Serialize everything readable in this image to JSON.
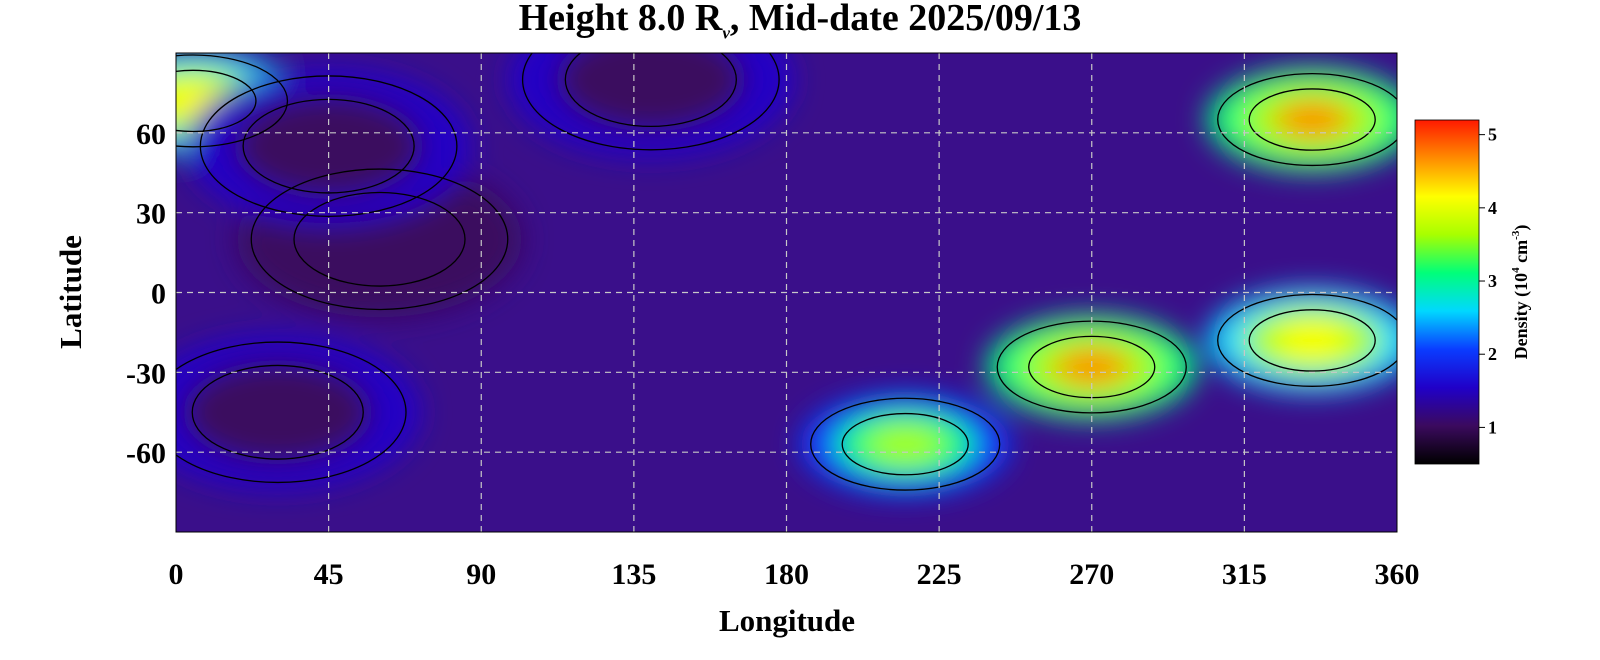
{
  "chart_data": {
    "type": "heatmap",
    "title": "Height 8.0 R",
    "title_subscript": "ν",
    "title_suffix": ", Mid-date 2025/09/13",
    "xlabel": "Longitude",
    "ylabel": "Latitude",
    "xlim": [
      0,
      360
    ],
    "ylim": [
      -90,
      90
    ],
    "x_ticks": [
      0,
      45,
      90,
      135,
      180,
      225,
      270,
      315,
      360
    ],
    "y_ticks": [
      60,
      30,
      0,
      -30,
      -60
    ],
    "grid": true,
    "colorbar": {
      "label": "Density (10",
      "label_exp": "4",
      "label_unit": " cm",
      "label_unit_exp": "-3",
      "label_close": ")",
      "ticks": [
        1,
        2,
        3,
        4,
        5
      ],
      "range": [
        0.5,
        5.2
      ],
      "colors": [
        "#000000",
        "#3b0a5e",
        "#2000c8",
        "#0a3cff",
        "#00d8ff",
        "#00ff7a",
        "#a8ff00",
        "#ffff00",
        "#ff8c00",
        "#ff1a00"
      ]
    },
    "features": [
      {
        "lon": 270,
        "lat": -28,
        "value": 4.6,
        "desc": "high"
      },
      {
        "lon": 335,
        "lat": 65,
        "value": 4.5,
        "desc": "high"
      },
      {
        "lon": 5,
        "lat": 72,
        "value": 4.3,
        "desc": "high"
      },
      {
        "lon": 335,
        "lat": -18,
        "value": 4.2,
        "desc": "high"
      },
      {
        "lon": 215,
        "lat": -57,
        "value": 3.8,
        "desc": "high"
      },
      {
        "lon": 60,
        "lat": 20,
        "value": 0.8,
        "desc": "low"
      },
      {
        "lon": 45,
        "lat": 55,
        "value": 0.9,
        "desc": "low"
      },
      {
        "lon": 140,
        "lat": 80,
        "value": 0.9,
        "desc": "low"
      },
      {
        "lon": 30,
        "lat": -45,
        "value": 0.9,
        "desc": "low"
      }
    ]
  }
}
